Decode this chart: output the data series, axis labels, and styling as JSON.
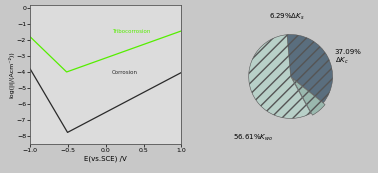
{
  "left_panel": {
    "xlabel": "E(vs.SCE) /V",
    "ylabel": "log(|i|/(Acm⁻²))",
    "xlim": [
      -1.0,
      1.0
    ],
    "ylim": [
      -8.5,
      0.2
    ],
    "yticks": [
      0,
      -1,
      -2,
      -3,
      -4,
      -5,
      -6,
      -7,
      -8
    ],
    "xticks": [
      -1.0,
      -0.5,
      0.0,
      0.5,
      1.0
    ],
    "corrosion_label": "Corrosion",
    "tribocorrosion_label": "Tribocorrosion",
    "corrosion_color": "#2a2a2a",
    "tribocorrosion_color": "#55ee00",
    "bg_color": "#dcdcdc"
  },
  "right_panel": {
    "slices": [
      37.09,
      6.29,
      56.61
    ],
    "label1": "37.09%",
    "label1b": "$\\Delta K_c$",
    "label2": "6.29%$\\Delta K_s$",
    "label3": "56.61%$K_{wo}$",
    "color1": "#5a6e7e",
    "color2": "#9ab8ae",
    "color3": "#b8d0c8",
    "startangle": 95,
    "bg_color": "#ffffff",
    "frame_color": "#aaaaaa"
  }
}
